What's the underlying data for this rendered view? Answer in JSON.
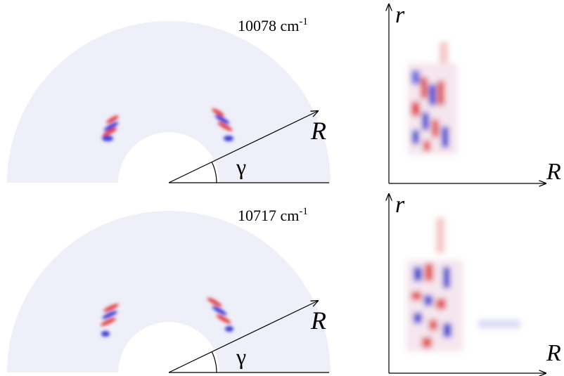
{
  "panels": [
    {
      "energy_label": "10078 cm",
      "energy_exponent": "-1",
      "polar_radial_label": "R",
      "polar_angle_label": "γ",
      "map_vertical_label": "r",
      "map_horizontal_label": "R"
    },
    {
      "energy_label": "10717 cm",
      "energy_exponent": "-1",
      "polar_radial_label": "R",
      "polar_angle_label": "γ",
      "map_vertical_label": "r",
      "map_horizontal_label": "R"
    }
  ]
}
